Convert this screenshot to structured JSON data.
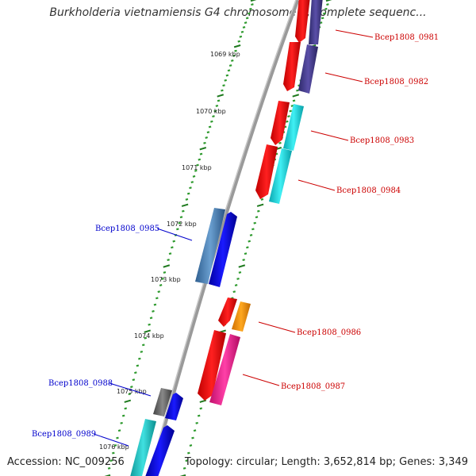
{
  "title": "Burkholderia vietnamiensis G4 chromosome 1, complete sequenc...",
  "footer": {
    "accession": "Accession: NC_009256",
    "summary": "Topology: circular; Length: 3,652,814 bp; Genes: 3,349"
  },
  "kbp_labels": [
    "1069 kbp",
    "1070 kbp",
    "1071 kbp",
    "1072 kbp",
    "1073 kbp",
    "1074 kbp",
    "1075 kbp",
    "1076 kbp"
  ],
  "gene_labels_forward": [
    "Bcep1808_0981",
    "Bcep1808_0982",
    "Bcep1808_0983",
    "Bcep1808_0984",
    "Bcep1808_0986",
    "Bcep1808_0987"
  ],
  "gene_labels_reverse": [
    "Bcep1808_0985",
    "Bcep1808_0988",
    "Bcep1808_0989"
  ],
  "colors": {
    "backbone": "#8a8a8a",
    "tick_major": "#1e7a1e",
    "tick_minor": "#2e9a2e",
    "forward_label": "#cc0000",
    "reverse_label": "#0000cc",
    "red": "#ff0000",
    "navy_purple": "#4a3f8f",
    "cyan": "#1ed8e0",
    "blue": "#0000ff",
    "steel_blue": "#4a7fb0",
    "orange": "#ff9900",
    "pink": "#ff1493",
    "gray": "#666666",
    "teal": "#20c0c0"
  }
}
